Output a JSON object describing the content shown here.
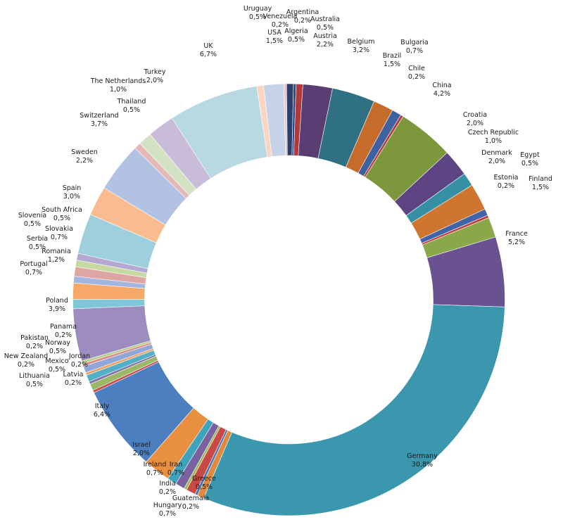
{
  "chart_data": {
    "type": "pie",
    "donut": true,
    "title": "",
    "legend": "none",
    "slices": [
      {
        "name": "Argentina",
        "label": "0,2%",
        "value": 0.2,
        "color": "#2a4a8a"
      },
      {
        "name": "Australia",
        "label": "0,5%",
        "value": 0.5,
        "color": "#b03a3a"
      },
      {
        "name": "Austria",
        "label": "2,2%",
        "value": 2.2,
        "color": "#5a3d72"
      },
      {
        "name": "Belgium",
        "label": "3,2%",
        "value": 3.2,
        "color": "#2f7182"
      },
      {
        "name": "Brazil",
        "label": "1,5%",
        "value": 1.5,
        "color": "#c76b2a"
      },
      {
        "name": "Bulgaria",
        "label": "0,7%",
        "value": 0.7,
        "color": "#3e61a0"
      },
      {
        "name": "Chile",
        "label": "0,2%",
        "value": 0.2,
        "color": "#b53b3b"
      },
      {
        "name": "China",
        "label": "4,2%",
        "value": 4.2,
        "color": "#7d973d"
      },
      {
        "name": "Croatia",
        "label": "2,0%",
        "value": 2.0,
        "color": "#5d4584"
      },
      {
        "name": "Czech Republic",
        "label": "1,0%",
        "value": 1.0,
        "color": "#3590a5"
      },
      {
        "name": "Denmark",
        "label": "2,0%",
        "value": 2.0,
        "color": "#d07530"
      },
      {
        "name": "Egypt",
        "label": "0,5%",
        "value": 0.5,
        "color": "#3f65a8"
      },
      {
        "name": "Estonia",
        "label": "0,2%",
        "value": 0.2,
        "color": "#be4040"
      },
      {
        "name": "Finland",
        "label": "1,5%",
        "value": 1.5,
        "color": "#8aa84a"
      },
      {
        "name": "France",
        "label": "5,2%",
        "value": 5.2,
        "color": "#6a5290"
      },
      {
        "name": "Germany",
        "label": "30,8%",
        "value": 30.8,
        "color": "#3a97ad"
      },
      {
        "name": "Greece",
        "label": "0,5%",
        "value": 0.5,
        "color": "#e08a3e"
      },
      {
        "name": "Guatemala",
        "label": "0,2%",
        "value": 0.2,
        "color": "#4a74b8"
      },
      {
        "name": "Hungary",
        "label": "0,7%",
        "value": 0.7,
        "color": "#c94a45"
      },
      {
        "name": "India",
        "label": "0,2%",
        "value": 0.2,
        "color": "#9bb85a"
      },
      {
        "name": "Iran",
        "label": "0,7%",
        "value": 0.7,
        "color": "#7a62a0"
      },
      {
        "name": "Ireland",
        "label": "0,7%",
        "value": 0.7,
        "color": "#3fa3bb"
      },
      {
        "name": "Israel",
        "label": "2,0%",
        "value": 2.0,
        "color": "#e8903f"
      },
      {
        "name": "Italy",
        "label": "6,4%",
        "value": 6.4,
        "color": "#4b7fc0"
      },
      {
        "name": "Latvia",
        "label": "0,2%",
        "value": 0.2,
        "color": "#c84e4e"
      },
      {
        "name": "Lithuania",
        "label": "0,5%",
        "value": 0.5,
        "color": "#9ab866"
      },
      {
        "name": "Jordan",
        "label": "0,2%",
        "value": 0.2,
        "color": "#8570aa"
      },
      {
        "name": "Mexico",
        "label": "0,5%",
        "value": 0.5,
        "color": "#52b0c6"
      },
      {
        "name": "New Zealand",
        "label": "0,2%",
        "value": 0.2,
        "color": "#f0a060"
      },
      {
        "name": "Norway",
        "label": "0,5%",
        "value": 0.5,
        "color": "#8ea6d8"
      },
      {
        "name": "Pakistan",
        "label": "0,2%",
        "value": 0.2,
        "color": "#d88a86"
      },
      {
        "name": "Panama",
        "label": "0,2%",
        "value": 0.2,
        "color": "#b6ce8c"
      },
      {
        "name": "Poland",
        "label": "3,9%",
        "value": 3.9,
        "color": "#9d8dbf"
      },
      {
        "name": "Portugal",
        "label": "0,7%",
        "value": 0.7,
        "color": "#7ec7d8"
      },
      {
        "name": "Romania",
        "label": "1,2%",
        "value": 1.2,
        "color": "#f6a868"
      },
      {
        "name": "Serbia",
        "label": "0,5%",
        "value": 0.5,
        "color": "#a2b6e0"
      },
      {
        "name": "Slovakia",
        "label": "0,7%",
        "value": 0.7,
        "color": "#dda6a2"
      },
      {
        "name": "Slovenia",
        "label": "0,5%",
        "value": 0.5,
        "color": "#c6d9a2"
      },
      {
        "name": "South Africa",
        "label": "0,5%",
        "value": 0.5,
        "color": "#b4a8d0"
      },
      {
        "name": "Spain",
        "label": "3,0%",
        "value": 3.0,
        "color": "#9dcfdc"
      },
      {
        "name": "Sweden",
        "label": "2,2%",
        "value": 2.2,
        "color": "#f8bc90"
      },
      {
        "name": "Switzerland",
        "label": "3,7%",
        "value": 3.7,
        "color": "#b2c2e2"
      },
      {
        "name": "Thailand",
        "label": "0,5%",
        "value": 0.5,
        "color": "#e4b8b6"
      },
      {
        "name": "The Netherlands",
        "label": "1,0%",
        "value": 1.0,
        "color": "#d2e2c2"
      },
      {
        "name": "Turkey",
        "label": "2,0%",
        "value": 2.0,
        "color": "#c8bcd8"
      },
      {
        "name": "UK",
        "label": "6,7%",
        "value": 6.7,
        "color": "#b8d8e2"
      },
      {
        "name": "Uruguay",
        "label": "0,5%",
        "value": 0.5,
        "color": "#fbd4c2"
      },
      {
        "name": "USA",
        "label": "1,5%",
        "value": 1.5,
        "color": "#c6d2e8"
      },
      {
        "name": "Venezuela",
        "label": "0,2%",
        "value": 0.2,
        "color": "#e8c8c6"
      },
      {
        "name": "Algeria",
        "label": "0,5%",
        "value": 0.5,
        "color": "#2a3f6a"
      }
    ]
  }
}
